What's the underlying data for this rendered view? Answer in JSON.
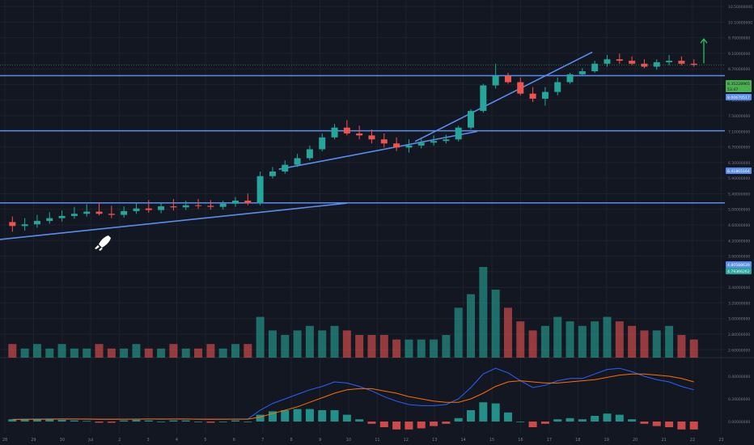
{
  "theme": {
    "background": "#131722",
    "grid": "#1e222d",
    "axis_text": "#787b86",
    "up": "#26a69a",
    "down": "#ef5350",
    "trendline": "#5b8def",
    "annotation_arrow": "#22c55e",
    "macd_line": "#2962ff",
    "signal_line": "#ff6d00"
  },
  "price_axis": {
    "ticks": [
      "10.50000000",
      "10.10000000",
      "9.70000000",
      "9.10000000",
      "8.70000000",
      "8.30000000",
      "7.90000000",
      "7.50000000",
      "7.10000000",
      "6.70000000",
      "6.30000000",
      "5.90000000",
      "5.40000000",
      "5.00000000",
      "4.60000000",
      "4.20000000",
      "3.90000000",
      "3.60000000",
      "3.40000000",
      "3.20000000",
      "3.00000000",
      "2.80000000",
      "2.60000000"
    ],
    "price_labels": [
      {
        "text": "8.35228965",
        "bg": "#4caf50",
        "fg": "#131722"
      },
      {
        "text": "53:47",
        "bg": "#4caf50",
        "fg": "#131722"
      },
      {
        "text": "8.00670517",
        "bg": "#5b8def",
        "fg": "#ffffff"
      },
      {
        "text": "6.41865164",
        "bg": "#5b8def",
        "fg": "#ffffff"
      },
      {
        "text": "4.80588639",
        "bg": "#5b8def",
        "fg": "#ffffff"
      },
      {
        "text": "4.79366262",
        "bg": "#26a69a",
        "fg": "#ffffff"
      }
    ]
  },
  "macd_axis": {
    "ticks": [
      "0.40000000",
      "0.20000000",
      "0.00000000"
    ]
  },
  "date_axis": {
    "ticks": [
      "28",
      "29",
      "30",
      "Jul",
      "2",
      "3",
      "4",
      "5",
      "6",
      "7",
      "8",
      "9",
      "10",
      "11",
      "12",
      "13",
      "14",
      "15",
      "16",
      "17",
      "18",
      "19",
      "20",
      "21",
      "22",
      "23"
    ]
  },
  "icons": {
    "rocket": "rocket-icon",
    "arrow": "up-arrow-icon"
  },
  "chart_data": {
    "type": "candlestick",
    "price_scale": "log",
    "price_range": [
      2.6,
      10.5
    ],
    "x_range": [
      -1,
      57.5
    ],
    "grid": true,
    "horizontal_levels": [
      8.0067,
      6.4187,
      4.8059
    ],
    "trendlines": [
      {
        "from": [
          -1,
          4.15
        ],
        "to": [
          27,
          4.8
        ]
      },
      {
        "from": [
          21.5,
          5.5
        ],
        "to": [
          37.5,
          6.4
        ]
      },
      {
        "from": [
          32.5,
          6.15
        ],
        "to": [
          46.8,
          8.8
        ]
      }
    ],
    "annotation": "arrow",
    "open": [
      4.45,
      4.38,
      4.41,
      4.47,
      4.52,
      4.56,
      4.6,
      4.64,
      4.6,
      4.58,
      4.65,
      4.7,
      4.67,
      4.74,
      4.72,
      4.76,
      4.75,
      4.73,
      4.79,
      4.85,
      4.8,
      5.35,
      5.45,
      5.6,
      5.75,
      5.96,
      6.25,
      6.5,
      6.35,
      6.3,
      6.2,
      6.1,
      6.0,
      6.05,
      6.12,
      6.16,
      6.2,
      6.5,
      6.95,
      7.7,
      8.0,
      7.8,
      7.45,
      7.3,
      7.5,
      7.8,
      8.05,
      8.15,
      8.4,
      8.55,
      8.5,
      8.4,
      8.3,
      8.45,
      8.5,
      8.4
    ],
    "high": [
      4.55,
      4.52,
      4.58,
      4.63,
      4.66,
      4.73,
      4.78,
      4.82,
      4.75,
      4.74,
      4.81,
      4.86,
      4.81,
      4.88,
      4.85,
      4.88,
      4.86,
      4.85,
      4.92,
      4.99,
      5.45,
      5.55,
      5.7,
      5.85,
      6.05,
      6.35,
      6.6,
      6.7,
      6.55,
      6.45,
      6.35,
      6.25,
      6.2,
      6.25,
      6.3,
      6.32,
      6.55,
      7.0,
      7.75,
      8.4,
      8.1,
      7.95,
      7.65,
      7.65,
      7.95,
      8.1,
      8.25,
      8.5,
      8.7,
      8.75,
      8.65,
      8.55,
      8.55,
      8.7,
      8.65,
      8.55
    ],
    "low": [
      4.28,
      4.3,
      4.35,
      4.42,
      4.46,
      4.51,
      4.55,
      4.57,
      4.52,
      4.53,
      4.6,
      4.62,
      4.61,
      4.66,
      4.67,
      4.69,
      4.68,
      4.68,
      4.73,
      4.76,
      4.76,
      5.3,
      5.4,
      5.55,
      5.7,
      5.91,
      6.2,
      6.3,
      6.2,
      6.1,
      6.0,
      5.92,
      5.88,
      5.98,
      6.05,
      6.1,
      6.15,
      6.45,
      6.9,
      7.6,
      7.75,
      7.4,
      7.2,
      7.1,
      7.4,
      7.75,
      8.0,
      8.1,
      8.3,
      8.4,
      8.35,
      8.25,
      8.2,
      8.35,
      8.35,
      8.3
    ],
    "close": [
      4.38,
      4.41,
      4.47,
      4.52,
      4.56,
      4.6,
      4.64,
      4.6,
      4.58,
      4.65,
      4.7,
      4.67,
      4.74,
      4.72,
      4.76,
      4.75,
      4.73,
      4.79,
      4.85,
      4.8,
      5.35,
      5.45,
      5.6,
      5.75,
      5.96,
      6.25,
      6.5,
      6.35,
      6.3,
      6.2,
      6.1,
      6.0,
      6.05,
      6.12,
      6.16,
      6.2,
      6.5,
      6.95,
      7.7,
      8.0,
      7.8,
      7.45,
      7.3,
      7.5,
      7.8,
      8.05,
      8.15,
      8.4,
      8.55,
      8.5,
      8.4,
      8.3,
      8.45,
      8.5,
      8.4,
      8.36
    ],
    "volume": [
      3,
      2,
      3,
      2,
      3,
      2,
      2,
      3,
      2,
      2,
      3,
      2,
      2,
      3,
      2,
      2,
      3,
      2,
      3,
      3,
      9,
      6,
      5,
      6,
      7,
      6,
      7,
      6,
      5,
      5,
      5,
      4,
      4,
      4,
      4,
      5,
      11,
      14,
      20,
      15,
      11,
      8,
      6,
      7,
      9,
      8,
      7,
      8,
      9,
      8,
      7,
      6,
      6,
      7,
      5,
      4
    ],
    "macd": [
      0.02,
      0.021,
      0.022,
      0.023,
      0.023,
      0.022,
      0.021,
      0.02,
      0.02,
      0.021,
      0.022,
      0.022,
      0.021,
      0.022,
      0.022,
      0.021,
      0.02,
      0.021,
      0.022,
      0.022,
      0.1,
      0.16,
      0.2,
      0.24,
      0.28,
      0.31,
      0.35,
      0.34,
      0.31,
      0.27,
      0.22,
      0.18,
      0.15,
      0.14,
      0.14,
      0.15,
      0.2,
      0.3,
      0.42,
      0.47,
      0.43,
      0.36,
      0.3,
      0.32,
      0.36,
      0.38,
      0.38,
      0.42,
      0.46,
      0.47,
      0.44,
      0.4,
      0.37,
      0.35,
      0.31,
      0.28
    ],
    "signal": [
      0.018,
      0.019,
      0.02,
      0.021,
      0.022,
      0.022,
      0.022,
      0.021,
      0.021,
      0.021,
      0.021,
      0.022,
      0.022,
      0.022,
      0.022,
      0.021,
      0.021,
      0.021,
      0.021,
      0.021,
      0.04,
      0.07,
      0.1,
      0.13,
      0.17,
      0.21,
      0.25,
      0.28,
      0.29,
      0.29,
      0.27,
      0.25,
      0.22,
      0.2,
      0.18,
      0.17,
      0.17,
      0.2,
      0.25,
      0.31,
      0.35,
      0.36,
      0.35,
      0.34,
      0.34,
      0.35,
      0.36,
      0.37,
      0.39,
      0.41,
      0.42,
      0.42,
      0.41,
      0.4,
      0.38,
      0.35
    ],
    "hist": [
      0.02,
      0.02,
      0.025,
      0.02,
      0.015,
      0.01,
      0.005,
      -0.01,
      -0.01,
      0.01,
      0.015,
      0.01,
      0.0,
      0.01,
      0.01,
      0.0,
      -0.01,
      0.0,
      0.01,
      0.0,
      0.06,
      0.09,
      0.1,
      0.11,
      0.11,
      0.1,
      0.1,
      0.06,
      0.02,
      -0.02,
      -0.05,
      -0.07,
      -0.07,
      -0.06,
      -0.04,
      -0.02,
      0.03,
      0.1,
      0.17,
      0.16,
      0.08,
      0.0,
      -0.05,
      -0.02,
      0.02,
      0.03,
      0.02,
      0.05,
      0.07,
      0.06,
      0.02,
      -0.02,
      -0.04,
      -0.05,
      -0.07,
      -0.07
    ],
    "macd_range": [
      -0.1,
      0.55
    ]
  }
}
